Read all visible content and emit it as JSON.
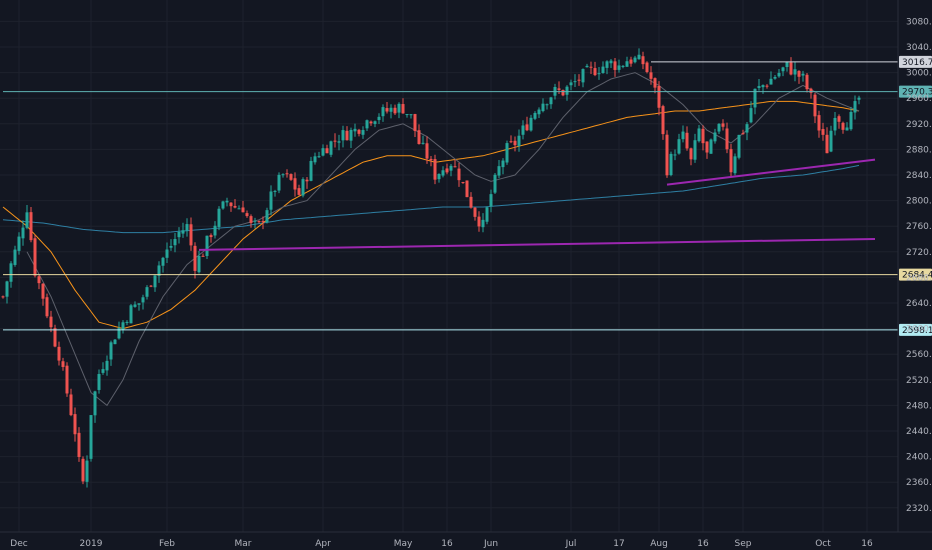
{
  "chart_data": {
    "type": "candlestick",
    "title": "",
    "xlabel": "",
    "ylabel": "",
    "ylim": [
      2300,
      3100
    ],
    "y_scale": "linear",
    "grid": true,
    "y_ticks": [
      2320,
      2360,
      2400,
      2440,
      2480,
      2520,
      2560,
      2600,
      2640,
      2680,
      2720,
      2760,
      2800,
      2840,
      2880,
      2920,
      2960,
      3000,
      3040,
      3080
    ],
    "x_ticks": [
      {
        "label": "Dec",
        "index": 4
      },
      {
        "label": "2019",
        "index": 22
      },
      {
        "label": "Feb",
        "index": 41
      },
      {
        "label": "Mar",
        "index": 60
      },
      {
        "label": "Apr",
        "index": 80
      },
      {
        "label": "May",
        "index": 100
      },
      {
        "label": "16",
        "index": 111
      },
      {
        "label": "Jun",
        "index": 122
      },
      {
        "label": "Jul",
        "index": 142
      },
      {
        "label": "17",
        "index": 154
      },
      {
        "label": "Aug",
        "index": 164
      },
      {
        "label": "16",
        "index": 175
      },
      {
        "label": "Sep",
        "index": 185
      },
      {
        "label": "Oct",
        "index": 205
      },
      {
        "label": "16",
        "index": 216
      }
    ],
    "horizontal_levels": [
      {
        "value": 3016.7,
        "label": "3016.7",
        "color": "#d1d4dc",
        "from_index": 162
      },
      {
        "value": 2970.3,
        "label": "2970.3",
        "color": "#5fb3b3",
        "from_index": 0
      },
      {
        "value": 2684.4,
        "label": "2684.4",
        "color": "#e8d9a0",
        "from_index": 0
      },
      {
        "value": 2598.1,
        "label": "2598.1",
        "color": "#b2ebf2",
        "from_index": 0
      }
    ],
    "trendlines": [
      {
        "from": [
          49,
          2723
        ],
        "to": [
          218,
          2740
        ],
        "color": "#9c27b0"
      },
      {
        "from": [
          166,
          2825
        ],
        "to": [
          218,
          2864
        ],
        "color": "#9c27b0"
      }
    ],
    "close_anchors": [
      [
        0,
        2650
      ],
      [
        2,
        2700
      ],
      [
        4,
        2740
      ],
      [
        6,
        2790
      ],
      [
        8,
        2690
      ],
      [
        10,
        2650
      ],
      [
        12,
        2600
      ],
      [
        14,
        2560
      ],
      [
        16,
        2500
      ],
      [
        18,
        2440
      ],
      [
        19,
        2390
      ],
      [
        20,
        2360
      ],
      [
        21,
        2400
      ],
      [
        22,
        2470
      ],
      [
        24,
        2530
      ],
      [
        26,
        2560
      ],
      [
        28,
        2590
      ],
      [
        30,
        2610
      ],
      [
        32,
        2630
      ],
      [
        34,
        2640
      ],
      [
        36,
        2660
      ],
      [
        38,
        2690
      ],
      [
        40,
        2710
      ],
      [
        42,
        2730
      ],
      [
        44,
        2750
      ],
      [
        46,
        2760
      ],
      [
        48,
        2700
      ],
      [
        50,
        2720
      ],
      [
        52,
        2750
      ],
      [
        54,
        2780
      ],
      [
        56,
        2800
      ],
      [
        58,
        2790
      ],
      [
        60,
        2790
      ],
      [
        62,
        2760
      ],
      [
        64,
        2760
      ],
      [
        66,
        2790
      ],
      [
        68,
        2820
      ],
      [
        70,
        2840
      ],
      [
        72,
        2830
      ],
      [
        74,
        2810
      ],
      [
        76,
        2840
      ],
      [
        78,
        2870
      ],
      [
        80,
        2880
      ],
      [
        82,
        2890
      ],
      [
        84,
        2900
      ],
      [
        86,
        2905
      ],
      [
        88,
        2910
      ],
      [
        90,
        2920
      ],
      [
        92,
        2930
      ],
      [
        94,
        2935
      ],
      [
        96,
        2940
      ],
      [
        98,
        2945
      ],
      [
        100,
        2945
      ],
      [
        102,
        2930
      ],
      [
        104,
        2890
      ],
      [
        106,
        2870
      ],
      [
        108,
        2840
      ],
      [
        110,
        2850
      ],
      [
        112,
        2860
      ],
      [
        114,
        2840
      ],
      [
        116,
        2810
      ],
      [
        118,
        2780
      ],
      [
        120,
        2760
      ],
      [
        122,
        2810
      ],
      [
        124,
        2850
      ],
      [
        126,
        2880
      ],
      [
        128,
        2890
      ],
      [
        130,
        2910
      ],
      [
        132,
        2930
      ],
      [
        134,
        2950
      ],
      [
        136,
        2960
      ],
      [
        138,
        2970
      ],
      [
        140,
        2970
      ],
      [
        142,
        2980
      ],
      [
        144,
        2990
      ],
      [
        146,
        3000
      ],
      [
        148,
        3005
      ],
      [
        150,
        3010
      ],
      [
        152,
        3015
      ],
      [
        154,
        3010
      ],
      [
        156,
        3020
      ],
      [
        158,
        3020
      ],
      [
        160,
        3015
      ],
      [
        162,
        2990
      ],
      [
        164,
        2950
      ],
      [
        166,
        2850
      ],
      [
        168,
        2880
      ],
      [
        170,
        2900
      ],
      [
        172,
        2860
      ],
      [
        174,
        2910
      ],
      [
        176,
        2870
      ],
      [
        178,
        2900
      ],
      [
        180,
        2920
      ],
      [
        182,
        2850
      ],
      [
        184,
        2900
      ],
      [
        186,
        2920
      ],
      [
        188,
        2970
      ],
      [
        190,
        2980
      ],
      [
        192,
        2990
      ],
      [
        194,
        3000
      ],
      [
        196,
        3010
      ],
      [
        198,
        3000
      ],
      [
        200,
        2990
      ],
      [
        202,
        2960
      ],
      [
        204,
        2910
      ],
      [
        206,
        2880
      ],
      [
        208,
        2940
      ],
      [
        210,
        2920
      ],
      [
        212,
        2930
      ],
      [
        214,
        2960
      ]
    ],
    "ma_fast_anchors": [
      [
        6,
        2720
      ],
      [
        12,
        2650
      ],
      [
        18,
        2560
      ],
      [
        22,
        2500
      ],
      [
        26,
        2480
      ],
      [
        30,
        2520
      ],
      [
        34,
        2580
      ],
      [
        40,
        2650
      ],
      [
        46,
        2700
      ],
      [
        52,
        2730
      ],
      [
        58,
        2760
      ],
      [
        64,
        2770
      ],
      [
        70,
        2790
      ],
      [
        76,
        2800
      ],
      [
        82,
        2840
      ],
      [
        88,
        2880
      ],
      [
        94,
        2910
      ],
      [
        100,
        2920
      ],
      [
        106,
        2900
      ],
      [
        112,
        2870
      ],
      [
        118,
        2840
      ],
      [
        122,
        2830
      ],
      [
        128,
        2840
      ],
      [
        134,
        2880
      ],
      [
        140,
        2930
      ],
      [
        146,
        2970
      ],
      [
        152,
        2990
      ],
      [
        158,
        3000
      ],
      [
        164,
        2980
      ],
      [
        170,
        2950
      ],
      [
        176,
        2910
      ],
      [
        182,
        2890
      ],
      [
        188,
        2920
      ],
      [
        194,
        2960
      ],
      [
        200,
        2980
      ],
      [
        206,
        2960
      ],
      [
        214,
        2940
      ]
    ],
    "ma_mid_anchors": [
      [
        0,
        2790
      ],
      [
        6,
        2760
      ],
      [
        12,
        2720
      ],
      [
        18,
        2660
      ],
      [
        24,
        2610
      ],
      [
        30,
        2600
      ],
      [
        36,
        2610
      ],
      [
        42,
        2630
      ],
      [
        48,
        2660
      ],
      [
        54,
        2700
      ],
      [
        60,
        2740
      ],
      [
        66,
        2770
      ],
      [
        72,
        2800
      ],
      [
        78,
        2820
      ],
      [
        84,
        2840
      ],
      [
        90,
        2860
      ],
      [
        96,
        2870
      ],
      [
        102,
        2870
      ],
      [
        108,
        2860
      ],
      [
        114,
        2865
      ],
      [
        120,
        2870
      ],
      [
        126,
        2880
      ],
      [
        132,
        2890
      ],
      [
        138,
        2900
      ],
      [
        144,
        2910
      ],
      [
        150,
        2920
      ],
      [
        156,
        2930
      ],
      [
        162,
        2935
      ],
      [
        168,
        2940
      ],
      [
        174,
        2940
      ],
      [
        180,
        2945
      ],
      [
        186,
        2950
      ],
      [
        192,
        2955
      ],
      [
        198,
        2955
      ],
      [
        204,
        2950
      ],
      [
        210,
        2945
      ],
      [
        214,
        2940
      ]
    ],
    "ma_slow_anchors": [
      [
        0,
        2770
      ],
      [
        10,
        2765
      ],
      [
        20,
        2755
      ],
      [
        30,
        2750
      ],
      [
        40,
        2750
      ],
      [
        50,
        2755
      ],
      [
        60,
        2760
      ],
      [
        70,
        2770
      ],
      [
        80,
        2775
      ],
      [
        90,
        2780
      ],
      [
        100,
        2785
      ],
      [
        110,
        2790
      ],
      [
        120,
        2790
      ],
      [
        130,
        2795
      ],
      [
        140,
        2800
      ],
      [
        150,
        2805
      ],
      [
        160,
        2810
      ],
      [
        170,
        2815
      ],
      [
        180,
        2825
      ],
      [
        190,
        2835
      ],
      [
        200,
        2840
      ],
      [
        210,
        2850
      ],
      [
        214,
        2855
      ]
    ],
    "colors": {
      "background": "#131722",
      "grid": "#1e222d",
      "up": "#26a69a",
      "down": "#ef5350",
      "ma_fast": "#5d606b",
      "ma_mid": "#f7931a",
      "ma_slow": "#2e7fa3",
      "trendline": "#9c27b0"
    }
  }
}
